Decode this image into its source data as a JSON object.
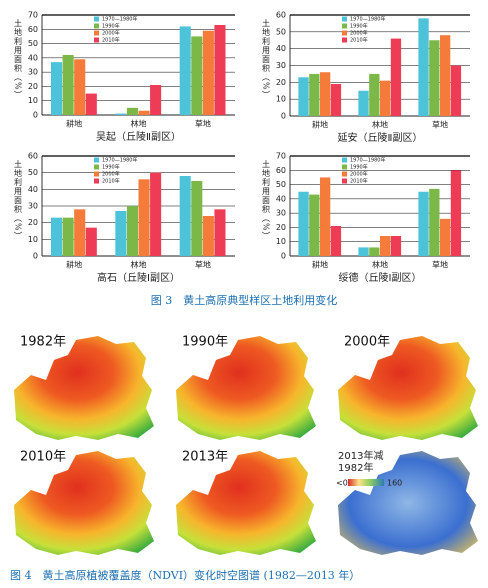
{
  "chart_data": [
    {
      "type": "bar",
      "title": "吴起（丘陵Ⅱ副区）",
      "y_label": "土地利用面积（%）",
      "categories": [
        "耕地",
        "林地",
        "草地"
      ],
      "series": [
        {
          "name": "1970—1980年",
          "color": "#4cc3d8",
          "values": [
            37,
            1,
            62
          ]
        },
        {
          "name": "1990年",
          "color": "#7cb848",
          "values": [
            42,
            5,
            55
          ]
        },
        {
          "name": "2000年",
          "color": "#f47b3a",
          "values": [
            39,
            3,
            59
          ]
        },
        {
          "name": "2010年",
          "color": "#ee3c56",
          "values": [
            15,
            21,
            63
          ]
        }
      ],
      "ylim": [
        0,
        70
      ],
      "yticks": [
        0,
        10,
        20,
        30,
        40,
        50,
        60,
        70
      ],
      "grid": true,
      "legend": "upper-left"
    },
    {
      "type": "bar",
      "title": "延安（丘陵Ⅱ副区）",
      "y_label": "土地利用面积（%）",
      "categories": [
        "耕地",
        "林地",
        "草地"
      ],
      "series": [
        {
          "name": "1970—1980年",
          "color": "#4cc3d8",
          "values": [
            23,
            15,
            58
          ]
        },
        {
          "name": "1990年",
          "color": "#7cb848",
          "values": [
            25,
            25,
            45
          ]
        },
        {
          "name": "2000年",
          "color": "#f47b3a",
          "values": [
            26,
            21,
            48
          ]
        },
        {
          "name": "2010年",
          "color": "#ee3c56",
          "values": [
            19,
            46,
            30
          ]
        }
      ],
      "ylim": [
        0,
        60
      ],
      "yticks": [
        0,
        10,
        20,
        30,
        40,
        50,
        60
      ],
      "grid": true,
      "legend": "upper-left"
    },
    {
      "type": "bar",
      "title": "高石（丘陵Ⅰ副区）",
      "y_label": "土地利用面积（%）",
      "categories": [
        "耕地",
        "林地",
        "草地"
      ],
      "series": [
        {
          "name": "1970—1980年",
          "color": "#4cc3d8",
          "values": [
            23,
            27,
            48
          ]
        },
        {
          "name": "1990年",
          "color": "#7cb848",
          "values": [
            23,
            30,
            45
          ]
        },
        {
          "name": "2000年",
          "color": "#f47b3a",
          "values": [
            28,
            46,
            24
          ]
        },
        {
          "name": "2010年",
          "color": "#ee3c56",
          "values": [
            17,
            50,
            28
          ]
        }
      ],
      "ylim": [
        0,
        60
      ],
      "yticks": [
        0,
        10,
        20,
        30,
        40,
        50,
        60
      ],
      "grid": true,
      "legend": "upper-left"
    },
    {
      "type": "bar",
      "title": "绥德（丘陵Ⅰ副区）",
      "y_label": "土地利用面积（%）",
      "categories": [
        "耕地",
        "林地",
        "草地"
      ],
      "series": [
        {
          "name": "1970—1980年",
          "color": "#4cc3d8",
          "values": [
            45,
            6,
            45
          ]
        },
        {
          "name": "1990年",
          "color": "#7cb848",
          "values": [
            43,
            6,
            47
          ]
        },
        {
          "name": "2000年",
          "color": "#f47b3a",
          "values": [
            55,
            14,
            26
          ]
        },
        {
          "name": "2010年",
          "color": "#ee3c56",
          "values": [
            21,
            14,
            60
          ]
        }
      ],
      "ylim": [
        0,
        70
      ],
      "yticks": [
        0,
        10,
        20,
        30,
        40,
        50,
        60,
        70
      ],
      "grid": true,
      "legend": "upper-left"
    }
  ],
  "figure3_caption": "图 3　黄土高原典型样区土地利用变化",
  "maps": {
    "panels": [
      "1982年",
      "1990年",
      "2000年",
      "2010年",
      "2013年"
    ],
    "diff_title": [
      "2013年减",
      "1982年"
    ],
    "legend_min": "<0",
    "legend_max": "160"
  },
  "figure4_caption": "图 4　黄土高原植被覆盖度（NDVI）变化时空图谱 (1982—2013 年）"
}
